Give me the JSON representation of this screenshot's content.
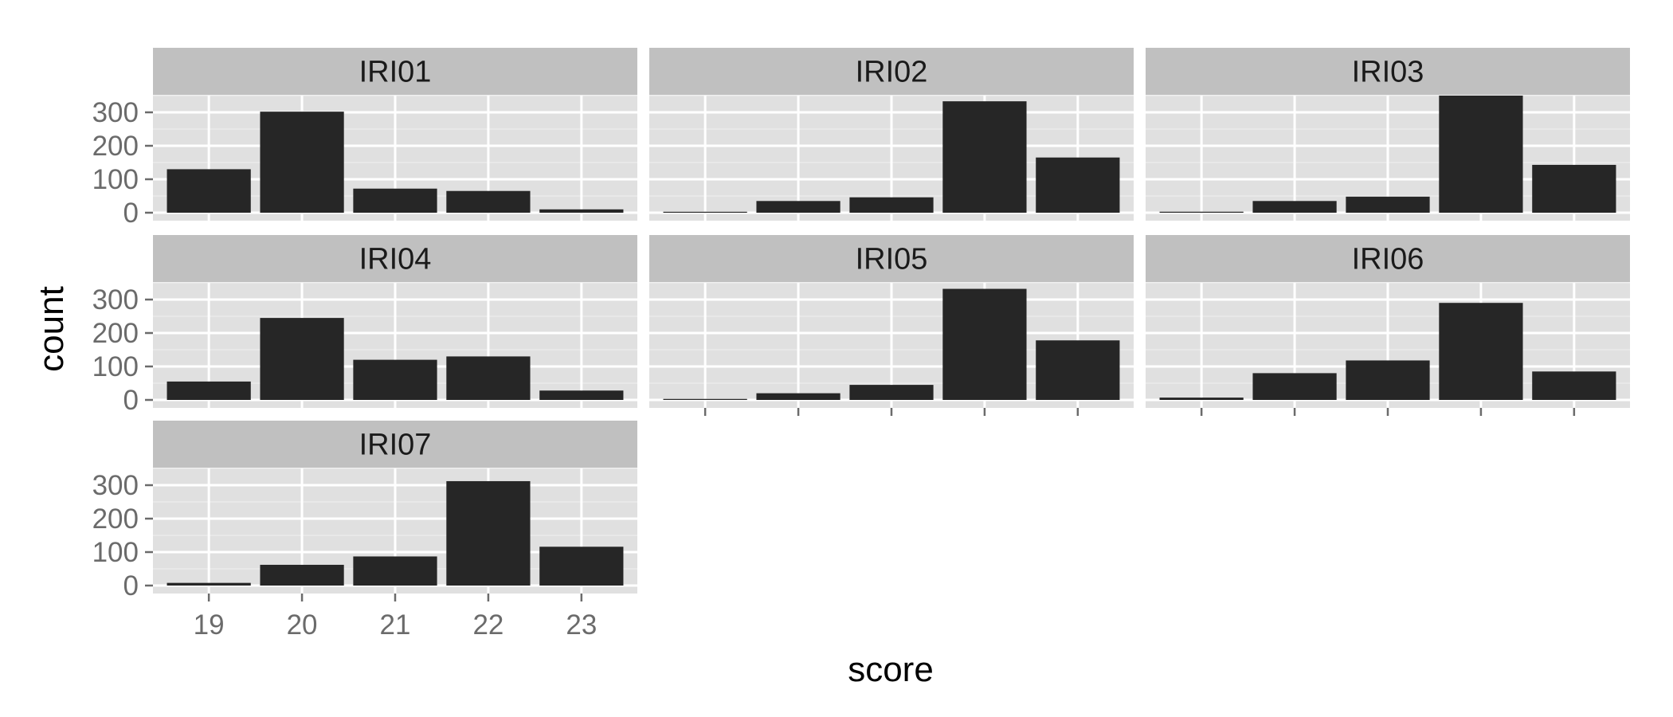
{
  "chart_data": {
    "type": "bar",
    "layout": "facet_wrap",
    "ncol": 3,
    "xlabel": "score",
    "ylabel": "count",
    "categories": [
      "19",
      "20",
      "21",
      "22",
      "23"
    ],
    "yticks": [
      0,
      100,
      200,
      300
    ],
    "ylim": [
      0,
      350
    ],
    "grid": true,
    "colors": {
      "bar": "#262626",
      "panel_bg": "#e0e0e0",
      "grid_major": "#ffffff",
      "grid_minor": "#ebebeb",
      "strip_bg": "#c0c0c0"
    },
    "facets": [
      {
        "label": "IRI01",
        "values": [
          130,
          302,
          72,
          65,
          10
        ]
      },
      {
        "label": "IRI02",
        "values": [
          2,
          35,
          46,
          333,
          165
        ]
      },
      {
        "label": "IRI03",
        "values": [
          3,
          35,
          48,
          350,
          143
        ]
      },
      {
        "label": "IRI04",
        "values": [
          55,
          245,
          120,
          130,
          28
        ]
      },
      {
        "label": "IRI05",
        "values": [
          3,
          20,
          45,
          332,
          178
        ]
      },
      {
        "label": "IRI06",
        "values": [
          7,
          80,
          118,
          290,
          85
        ]
      },
      {
        "label": "IRI07",
        "values": [
          8,
          62,
          87,
          312,
          116
        ]
      }
    ]
  }
}
